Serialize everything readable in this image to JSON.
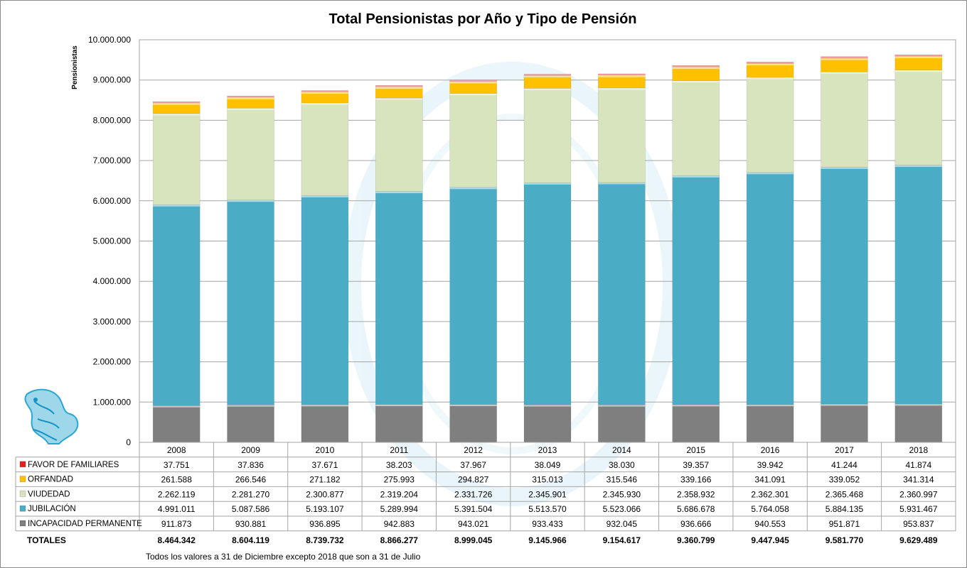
{
  "chart_data": {
    "type": "bar",
    "stacked": true,
    "title": "Total Pensionistas por Año y Tipo de Pensión",
    "ylabel": "Pensionistas",
    "ylim": [
      0,
      10000000
    ],
    "yticks": [
      0,
      1000000,
      2000000,
      3000000,
      4000000,
      5000000,
      6000000,
      7000000,
      8000000,
      9000000,
      10000000
    ],
    "ytick_labels": [
      "0",
      "1.000.000",
      "2.000.000",
      "3.000.000",
      "4.000.000",
      "5.000.000",
      "6.000.000",
      "7.000.000",
      "8.000.000",
      "9.000.000",
      "10.000.000"
    ],
    "categories": [
      "2008",
      "2009",
      "2010",
      "2011",
      "2012",
      "2013",
      "2014",
      "2015",
      "2016",
      "2017",
      "2018"
    ],
    "series": [
      {
        "name": "INCAPACIDAD PERMANENTE",
        "color": "#7f7f7f",
        "values": [
          911873,
          930881,
          936895,
          942883,
          943021,
          933433,
          932045,
          936666,
          940553,
          951871,
          953837
        ],
        "labels": [
          "911.873",
          "930.881",
          "936.895",
          "942.883",
          "943.021",
          "933.433",
          "932.045",
          "936.666",
          "940.553",
          "951.871",
          "953.837"
        ]
      },
      {
        "name": "JUBILACIÓN",
        "color": "#4bacc6",
        "values": [
          4991011,
          5087586,
          5193107,
          5289994,
          5391504,
          5513570,
          5523066,
          5686678,
          5764058,
          5884135,
          5931467
        ],
        "labels": [
          "4.991.011",
          "5.087.586",
          "5.193.107",
          "5.289.994",
          "5.391.504",
          "5.513.570",
          "5.523.066",
          "5.686.678",
          "5.764.058",
          "5.884.135",
          "5.931.467"
        ]
      },
      {
        "name": "VIUDEDAD",
        "color": "#d7e4bd",
        "values": [
          2262119,
          2281270,
          2300877,
          2319204,
          2331726,
          2345901,
          2345930,
          2358932,
          2362301,
          2365468,
          2360997
        ],
        "labels": [
          "2.262.119",
          "2.281.270",
          "2.300.877",
          "2.319.204",
          "2.331.726",
          "2.345.901",
          "2.345.930",
          "2.358.932",
          "2.362.301",
          "2.365.468",
          "2.360.997"
        ]
      },
      {
        "name": "ORFANDAD",
        "color": "#ffc000",
        "values": [
          261588,
          266546,
          271182,
          275993,
          294827,
          315013,
          315546,
          339166,
          341091,
          339052,
          341314
        ],
        "labels": [
          "261.588",
          "266.546",
          "271.182",
          "275.993",
          "294.827",
          "315.013",
          "315.546",
          "339.166",
          "341.091",
          "339.052",
          "341.314"
        ]
      },
      {
        "name": "FAVOR DE FAMILIARES",
        "color": "#e32020",
        "values": [
          37751,
          37836,
          37671,
          38203,
          37967,
          38049,
          38030,
          39357,
          39942,
          41244,
          41874
        ],
        "labels": [
          "37.751",
          "37.836",
          "37.671",
          "38.203",
          "37.967",
          "38.049",
          "38.030",
          "39.357",
          "39.942",
          "41.244",
          "41.874"
        ]
      }
    ],
    "totals_label": "TOTALES",
    "totals": [
      "8.464.342",
      "8.604.119",
      "8.739.732",
      "8.866.277",
      "8.999.045",
      "9.145.966",
      "9.154.617",
      "9.360.799",
      "9.447.945",
      "9.581.770",
      "9.629.489"
    ],
    "footnote": "Todos los valores a 31 de Diciembre excepto 2018 que son a 31 de Julio",
    "grid": true,
    "legend": "data table"
  }
}
